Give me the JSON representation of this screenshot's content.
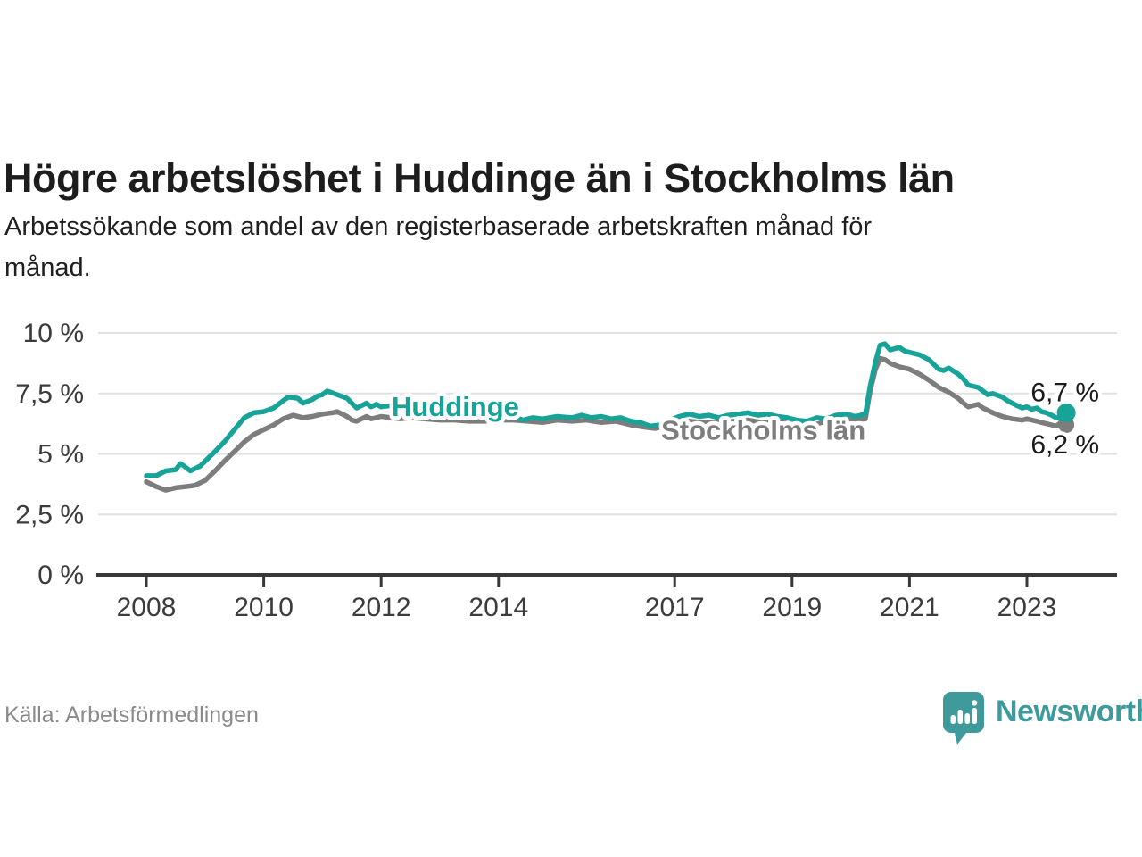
{
  "chart_data": {
    "type": "line",
    "title": "Högre arbetslöshet i Huddinge än i Stockholms län",
    "subtitle_lines": [
      "Arbetssökande som andel av den registerbaserade arbetskraften månad för",
      "månad."
    ],
    "source": "Källa: Arbetsförmedlingen",
    "brand": "Newsworthy",
    "xlabel": "",
    "ylabel": "",
    "ylim": [
      0,
      10
    ],
    "xlim": [
      2007.2,
      2024.5
    ],
    "grid": true,
    "legend": "inline-series-labels",
    "y_ticks": [
      {
        "v": 0,
        "label": "0 %"
      },
      {
        "v": 2.5,
        "label": "2,5 %"
      },
      {
        "v": 5,
        "label": "5 %"
      },
      {
        "v": 7.5,
        "label": "7,5 %"
      },
      {
        "v": 10,
        "label": "10 %"
      }
    ],
    "x_ticks": [
      {
        "v": 2008,
        "label": "2008"
      },
      {
        "v": 2010,
        "label": "2010"
      },
      {
        "v": 2012,
        "label": "2012"
      },
      {
        "v": 2014,
        "label": "2014"
      },
      {
        "v": 2017,
        "label": "2017"
      },
      {
        "v": 2019,
        "label": "2019"
      },
      {
        "v": 2021,
        "label": "2021"
      },
      {
        "v": 2023,
        "label": "2023"
      }
    ],
    "series": [
      {
        "name": "Huddinge",
        "color": "#17a398",
        "inline_label": {
          "t": 2012.18,
          "v": 6.97
        },
        "end_label": "6,7 %",
        "end_value": 6.7,
        "end_label_dy": -13,
        "dot_r": 10.5,
        "points": [
          [
            2008.0,
            4.1
          ],
          [
            2008.17,
            4.1
          ],
          [
            2008.33,
            4.3
          ],
          [
            2008.5,
            4.35
          ],
          [
            2008.58,
            4.6
          ],
          [
            2008.67,
            4.45
          ],
          [
            2008.75,
            4.3
          ],
          [
            2008.92,
            4.5
          ],
          [
            2009.0,
            4.7
          ],
          [
            2009.17,
            5.1
          ],
          [
            2009.33,
            5.5
          ],
          [
            2009.5,
            6.0
          ],
          [
            2009.67,
            6.5
          ],
          [
            2009.83,
            6.7
          ],
          [
            2010.0,
            6.75
          ],
          [
            2010.17,
            6.9
          ],
          [
            2010.33,
            7.2
          ],
          [
            2010.42,
            7.35
          ],
          [
            2010.58,
            7.3
          ],
          [
            2010.67,
            7.1
          ],
          [
            2010.83,
            7.25
          ],
          [
            2010.92,
            7.4
          ],
          [
            2011.0,
            7.45
          ],
          [
            2011.08,
            7.6
          ],
          [
            2011.25,
            7.45
          ],
          [
            2011.42,
            7.3
          ],
          [
            2011.5,
            7.1
          ],
          [
            2011.58,
            6.9
          ],
          [
            2011.67,
            7.0
          ],
          [
            2011.75,
            7.1
          ],
          [
            2011.83,
            6.95
          ],
          [
            2011.92,
            7.05
          ],
          [
            2012.0,
            6.95
          ],
          [
            2012.17,
            7.0
          ],
          [
            2012.33,
            6.85
          ],
          [
            2012.5,
            6.8
          ],
          [
            2012.75,
            6.75
          ],
          [
            2013.0,
            6.7
          ],
          [
            2013.25,
            6.6
          ],
          [
            2013.5,
            6.55
          ],
          [
            2013.75,
            6.6
          ],
          [
            2014.0,
            6.5
          ],
          [
            2014.25,
            6.55
          ],
          [
            2014.42,
            6.4
          ],
          [
            2014.58,
            6.5
          ],
          [
            2014.75,
            6.45
          ],
          [
            2015.0,
            6.55
          ],
          [
            2015.25,
            6.5
          ],
          [
            2015.42,
            6.6
          ],
          [
            2015.58,
            6.5
          ],
          [
            2015.75,
            6.55
          ],
          [
            2015.92,
            6.45
          ],
          [
            2016.08,
            6.5
          ],
          [
            2016.25,
            6.35
          ],
          [
            2016.42,
            6.3
          ],
          [
            2016.58,
            6.15
          ],
          [
            2016.75,
            6.2
          ],
          [
            2016.92,
            6.4
          ],
          [
            2017.08,
            6.55
          ],
          [
            2017.25,
            6.65
          ],
          [
            2017.42,
            6.55
          ],
          [
            2017.58,
            6.6
          ],
          [
            2017.75,
            6.5
          ],
          [
            2017.92,
            6.6
          ],
          [
            2018.08,
            6.65
          ],
          [
            2018.25,
            6.7
          ],
          [
            2018.42,
            6.6
          ],
          [
            2018.58,
            6.65
          ],
          [
            2018.75,
            6.55
          ],
          [
            2018.92,
            6.5
          ],
          [
            2019.08,
            6.4
          ],
          [
            2019.25,
            6.35
          ],
          [
            2019.42,
            6.5
          ],
          [
            2019.58,
            6.45
          ],
          [
            2019.75,
            6.6
          ],
          [
            2019.92,
            6.65
          ],
          [
            2020.08,
            6.55
          ],
          [
            2020.25,
            6.65
          ],
          [
            2020.33,
            7.8
          ],
          [
            2020.42,
            8.8
          ],
          [
            2020.5,
            9.5
          ],
          [
            2020.58,
            9.55
          ],
          [
            2020.67,
            9.3
          ],
          [
            2020.75,
            9.35
          ],
          [
            2020.83,
            9.4
          ],
          [
            2020.92,
            9.25
          ],
          [
            2021.0,
            9.2
          ],
          [
            2021.17,
            9.1
          ],
          [
            2021.33,
            8.9
          ],
          [
            2021.5,
            8.5
          ],
          [
            2021.58,
            8.45
          ],
          [
            2021.67,
            8.55
          ],
          [
            2021.83,
            8.3
          ],
          [
            2021.92,
            8.1
          ],
          [
            2022.0,
            7.85
          ],
          [
            2022.17,
            7.75
          ],
          [
            2022.25,
            7.6
          ],
          [
            2022.33,
            7.45
          ],
          [
            2022.42,
            7.5
          ],
          [
            2022.58,
            7.35
          ],
          [
            2022.67,
            7.2
          ],
          [
            2022.83,
            7.0
          ],
          [
            2022.92,
            6.9
          ],
          [
            2023.0,
            6.95
          ],
          [
            2023.08,
            6.85
          ],
          [
            2023.17,
            6.9
          ],
          [
            2023.25,
            6.75
          ],
          [
            2023.33,
            6.7
          ],
          [
            2023.42,
            6.6
          ],
          [
            2023.5,
            6.5
          ],
          [
            2023.58,
            6.45
          ],
          [
            2023.67,
            6.7
          ]
        ]
      },
      {
        "name": "Stockholms län",
        "color": "#7d7d7d",
        "inline_label": {
          "t": 2016.77,
          "v": 6.0
        },
        "end_label": "6,2 %",
        "end_value": 6.2,
        "end_label_dy": 32,
        "dot_r": 9,
        "points": [
          [
            2008.0,
            3.85
          ],
          [
            2008.17,
            3.65
          ],
          [
            2008.33,
            3.5
          ],
          [
            2008.5,
            3.6
          ],
          [
            2008.67,
            3.65
          ],
          [
            2008.83,
            3.7
          ],
          [
            2009.0,
            3.9
          ],
          [
            2009.17,
            4.3
          ],
          [
            2009.33,
            4.7
          ],
          [
            2009.5,
            5.1
          ],
          [
            2009.67,
            5.5
          ],
          [
            2009.83,
            5.8
          ],
          [
            2010.0,
            6.0
          ],
          [
            2010.17,
            6.2
          ],
          [
            2010.33,
            6.45
          ],
          [
            2010.5,
            6.6
          ],
          [
            2010.67,
            6.5
          ],
          [
            2010.83,
            6.55
          ],
          [
            2011.0,
            6.65
          ],
          [
            2011.17,
            6.7
          ],
          [
            2011.25,
            6.75
          ],
          [
            2011.42,
            6.55
          ],
          [
            2011.5,
            6.4
          ],
          [
            2011.58,
            6.35
          ],
          [
            2011.75,
            6.55
          ],
          [
            2011.83,
            6.45
          ],
          [
            2012.0,
            6.55
          ],
          [
            2012.17,
            6.5
          ],
          [
            2012.33,
            6.45
          ],
          [
            2012.5,
            6.5
          ],
          [
            2012.75,
            6.45
          ],
          [
            2013.0,
            6.4
          ],
          [
            2013.25,
            6.4
          ],
          [
            2013.5,
            6.35
          ],
          [
            2013.75,
            6.35
          ],
          [
            2014.0,
            6.4
          ],
          [
            2014.25,
            6.4
          ],
          [
            2014.5,
            6.35
          ],
          [
            2014.75,
            6.3
          ],
          [
            2015.0,
            6.4
          ],
          [
            2015.25,
            6.35
          ],
          [
            2015.5,
            6.4
          ],
          [
            2015.75,
            6.3
          ],
          [
            2016.0,
            6.35
          ],
          [
            2016.25,
            6.2
          ],
          [
            2016.5,
            6.1
          ],
          [
            2016.67,
            6.05
          ],
          [
            2016.83,
            6.15
          ],
          [
            2017.0,
            6.25
          ],
          [
            2017.25,
            6.35
          ],
          [
            2017.5,
            6.3
          ],
          [
            2017.75,
            6.3
          ],
          [
            2018.0,
            6.35
          ],
          [
            2018.25,
            6.4
          ],
          [
            2018.5,
            6.3
          ],
          [
            2018.75,
            6.3
          ],
          [
            2019.0,
            6.25
          ],
          [
            2019.17,
            6.2
          ],
          [
            2019.33,
            6.15
          ],
          [
            2019.5,
            6.3
          ],
          [
            2019.67,
            6.3
          ],
          [
            2019.83,
            6.45
          ],
          [
            2020.0,
            6.4
          ],
          [
            2020.25,
            6.45
          ],
          [
            2020.33,
            7.6
          ],
          [
            2020.42,
            8.5
          ],
          [
            2020.5,
            8.95
          ],
          [
            2020.58,
            8.9
          ],
          [
            2020.67,
            8.75
          ],
          [
            2020.83,
            8.6
          ],
          [
            2020.92,
            8.55
          ],
          [
            2021.0,
            8.5
          ],
          [
            2021.17,
            8.3
          ],
          [
            2021.33,
            8.05
          ],
          [
            2021.5,
            7.75
          ],
          [
            2021.67,
            7.55
          ],
          [
            2021.83,
            7.3
          ],
          [
            2021.92,
            7.1
          ],
          [
            2022.0,
            6.95
          ],
          [
            2022.08,
            7.0
          ],
          [
            2022.17,
            7.05
          ],
          [
            2022.25,
            6.9
          ],
          [
            2022.42,
            6.7
          ],
          [
            2022.58,
            6.55
          ],
          [
            2022.75,
            6.45
          ],
          [
            2022.92,
            6.4
          ],
          [
            2023.0,
            6.45
          ],
          [
            2023.17,
            6.35
          ],
          [
            2023.25,
            6.3
          ],
          [
            2023.33,
            6.25
          ],
          [
            2023.42,
            6.2
          ],
          [
            2023.5,
            6.15
          ],
          [
            2023.58,
            6.3
          ],
          [
            2023.67,
            6.2
          ]
        ]
      }
    ]
  }
}
